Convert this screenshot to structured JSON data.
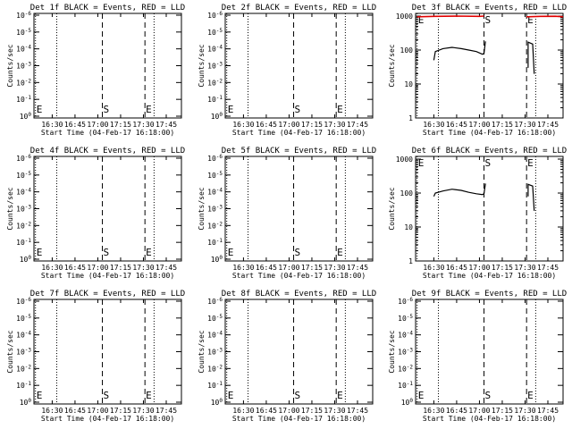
{
  "colors": {
    "events": "#000000",
    "lld": "#e00000",
    "background": "#ffffff"
  },
  "chart_data": [
    {
      "type": "line",
      "panel": 1,
      "scale": "low",
      "title": "Det 1f BLACK = Events, RED = LLD",
      "xlabel": "Start Time (04-Feb-17 16:18:00)",
      "ylabel": "Counts/sec",
      "xlim": [
        "16:18",
        "17:55"
      ],
      "x_ticks": [
        "16:30",
        "16:45",
        "17:00",
        "17:15",
        "17:30",
        "17:45"
      ],
      "ylog": true,
      "y_ticks": [
        "10^0",
        "10^-1",
        "10^-2",
        "10^-3",
        "10^-4",
        "10^-5",
        "10^-6"
      ],
      "dotted_lines": [
        "16:19",
        "16:33",
        "17:37"
      ],
      "dashed_lines": [
        "17:03",
        "17:31"
      ],
      "markers": [
        {
          "text": "E",
          "x": "16:19"
        },
        {
          "text": "S",
          "x": "17:03"
        },
        {
          "text": "E",
          "x": "17:31"
        }
      ],
      "series": []
    },
    {
      "type": "line",
      "panel": 2,
      "scale": "low",
      "title": "Det 2f BLACK = Events, RED = LLD",
      "xlabel": "Start Time (04-Feb-17 16:18:00)",
      "ylabel": "Counts/sec",
      "xlim": [
        "16:18",
        "17:55"
      ],
      "x_ticks": [
        "16:30",
        "16:45",
        "17:00",
        "17:15",
        "17:30",
        "17:45"
      ],
      "ylog": true,
      "y_ticks": [
        "10^0",
        "10^-1",
        "10^-2",
        "10^-3",
        "10^-4",
        "10^-5",
        "10^-6"
      ],
      "dotted_lines": [
        "16:19",
        "16:33",
        "17:37"
      ],
      "dashed_lines": [
        "17:03",
        "17:31"
      ],
      "markers": [
        {
          "text": "E",
          "x": "16:19"
        },
        {
          "text": "S",
          "x": "17:03"
        },
        {
          "text": "E",
          "x": "17:31"
        }
      ],
      "series": []
    },
    {
      "type": "line",
      "panel": 3,
      "scale": "high",
      "title": "Det 3f BLACK = Events, RED = LLD",
      "xlabel": "Start Time (04-Feb-17 16:18:00)",
      "ylabel": "Counts/sec",
      "xlim": [
        "16:18",
        "17:55"
      ],
      "x_ticks": [
        "16:30",
        "16:45",
        "17:00",
        "17:15",
        "17:30",
        "17:45"
      ],
      "ylog": true,
      "ylim": [
        1,
        1000
      ],
      "y_ticks": [
        "1",
        "10",
        "100",
        "1000"
      ],
      "dotted_lines": [
        "16:19",
        "16:33",
        "17:37"
      ],
      "dashed_lines": [
        "17:03",
        "17:31"
      ],
      "markers": [
        {
          "text": "E",
          "x": "16:19"
        },
        {
          "text": "S",
          "x": "17:03"
        },
        {
          "text": "E",
          "x": "17:31"
        }
      ],
      "series": [
        {
          "role": "lld",
          "color": "#e00000",
          "segments": [
            {
              "x": [
                "16:19",
                "16:30",
                "16:45",
                "17:00",
                "17:03"
              ],
              "y": [
                950,
                980,
                1000,
                980,
                1000
              ]
            },
            {
              "x": [
                "17:31",
                "17:40",
                "17:50",
                "17:55"
              ],
              "y": [
                950,
                980,
                990,
                950
              ]
            }
          ]
        },
        {
          "role": "events",
          "color": "#000000",
          "segments": [
            {
              "x": [
                "16:30",
                "16:31",
                "16:36",
                "16:42",
                "16:48",
                "16:53",
                "16:58",
                "17:02",
                "17:03",
                "17:04"
              ],
              "y": [
                50,
                90,
                110,
                120,
                110,
                100,
                90,
                75,
                80,
                180
              ]
            },
            {
              "x": [
                "17:32",
                "17:32",
                "17:35",
                "17:36"
              ],
              "y": [
                30,
                170,
                150,
                20
              ]
            }
          ]
        }
      ]
    },
    {
      "type": "line",
      "panel": 4,
      "scale": "low",
      "title": "Det 4f BLACK = Events, RED = LLD",
      "xlabel": "Start Time (04-Feb-17 16:18:00)",
      "ylabel": "Counts/sec",
      "xlim": [
        "16:18",
        "17:55"
      ],
      "x_ticks": [
        "16:30",
        "16:45",
        "17:00",
        "17:15",
        "17:30",
        "17:45"
      ],
      "ylog": true,
      "y_ticks": [
        "10^0",
        "10^-1",
        "10^-2",
        "10^-3",
        "10^-4",
        "10^-5",
        "10^-6"
      ],
      "dotted_lines": [
        "16:19",
        "16:33",
        "17:37"
      ],
      "dashed_lines": [
        "17:03",
        "17:31"
      ],
      "markers": [
        {
          "text": "E",
          "x": "16:19"
        },
        {
          "text": "S",
          "x": "17:03"
        },
        {
          "text": "E",
          "x": "17:31"
        }
      ],
      "series": []
    },
    {
      "type": "line",
      "panel": 5,
      "scale": "low",
      "title": "Det 5f BLACK = Events, RED = LLD",
      "xlabel": "Start Time (04-Feb-17 16:18:00)",
      "ylabel": "Counts/sec",
      "xlim": [
        "16:18",
        "17:55"
      ],
      "x_ticks": [
        "16:30",
        "16:45",
        "17:00",
        "17:15",
        "17:30",
        "17:45"
      ],
      "ylog": true,
      "y_ticks": [
        "10^0",
        "10^-1",
        "10^-2",
        "10^-3",
        "10^-4",
        "10^-5",
        "10^-6"
      ],
      "dotted_lines": [
        "16:19",
        "16:33",
        "17:37"
      ],
      "dashed_lines": [
        "17:03",
        "17:31"
      ],
      "markers": [
        {
          "text": "E",
          "x": "16:19"
        },
        {
          "text": "S",
          "x": "17:03"
        },
        {
          "text": "E",
          "x": "17:31"
        }
      ],
      "series": []
    },
    {
      "type": "line",
      "panel": 6,
      "scale": "high",
      "title": "Det 6f BLACK = Events, RED = LLD",
      "xlabel": "Start Time (04-Feb-17 16:18:00)",
      "ylabel": "Counts/sec",
      "xlim": [
        "16:18",
        "17:55"
      ],
      "x_ticks": [
        "16:30",
        "16:45",
        "17:00",
        "17:15",
        "17:30",
        "17:45"
      ],
      "ylog": true,
      "ylim": [
        1,
        1000
      ],
      "y_ticks": [
        "1",
        "10",
        "100",
        "1000"
      ],
      "dotted_lines": [
        "16:19",
        "16:33",
        "17:37"
      ],
      "dashed_lines": [
        "17:03",
        "17:31"
      ],
      "markers": [
        {
          "text": "E",
          "x": "16:19"
        },
        {
          "text": "S",
          "x": "17:03"
        },
        {
          "text": "E",
          "x": "17:31"
        }
      ],
      "series": [
        {
          "role": "events",
          "color": "#000000",
          "segments": [
            {
              "x": [
                "16:30",
                "16:31",
                "16:36",
                "16:42",
                "16:48",
                "16:53",
                "16:58",
                "17:02",
                "17:03",
                "17:04"
              ],
              "y": [
                80,
                100,
                115,
                130,
                120,
                105,
                95,
                90,
                95,
                190
              ]
            },
            {
              "x": [
                "17:32",
                "17:32",
                "17:35",
                "17:36"
              ],
              "y": [
                80,
                180,
                160,
                30
              ]
            }
          ]
        }
      ]
    },
    {
      "type": "line",
      "panel": 7,
      "scale": "low",
      "title": "Det 7f BLACK = Events, RED = LLD",
      "xlabel": "Start Time (04-Feb-17 16:18:00)",
      "ylabel": "Counts/sec",
      "xlim": [
        "16:18",
        "17:55"
      ],
      "x_ticks": [
        "16:30",
        "16:45",
        "17:00",
        "17:15",
        "17:30",
        "17:45"
      ],
      "ylog": true,
      "y_ticks": [
        "10^0",
        "10^-1",
        "10^-2",
        "10^-3",
        "10^-4",
        "10^-5",
        "10^-6"
      ],
      "dotted_lines": [
        "16:19",
        "16:33",
        "17:37"
      ],
      "dashed_lines": [
        "17:03",
        "17:31"
      ],
      "markers": [
        {
          "text": "E",
          "x": "16:19"
        },
        {
          "text": "S",
          "x": "17:03"
        },
        {
          "text": "E",
          "x": "17:31"
        }
      ],
      "series": []
    },
    {
      "type": "line",
      "panel": 8,
      "scale": "low",
      "title": "Det 8f BLACK = Events, RED = LLD",
      "xlabel": "Start Time (04-Feb-17 16:18:00)",
      "ylabel": "Counts/sec",
      "xlim": [
        "16:18",
        "17:55"
      ],
      "x_ticks": [
        "16:30",
        "16:45",
        "17:00",
        "17:15",
        "17:30",
        "17:45"
      ],
      "ylog": true,
      "y_ticks": [
        "10^0",
        "10^-1",
        "10^-2",
        "10^-3",
        "10^-4",
        "10^-5",
        "10^-6"
      ],
      "dotted_lines": [
        "16:19",
        "16:33",
        "17:37"
      ],
      "dashed_lines": [
        "17:03",
        "17:31"
      ],
      "markers": [
        {
          "text": "E",
          "x": "16:19"
        },
        {
          "text": "S",
          "x": "17:03"
        },
        {
          "text": "E",
          "x": "17:31"
        }
      ],
      "series": []
    },
    {
      "type": "line",
      "panel": 9,
      "scale": "low",
      "title": "Det 9f BLACK = Events, RED = LLD",
      "xlabel": "Start Time (04-Feb-17 16:18:00)",
      "ylabel": "Counts/sec",
      "xlim": [
        "16:18",
        "17:55"
      ],
      "x_ticks": [
        "16:30",
        "16:45",
        "17:00",
        "17:15",
        "17:30",
        "17:45"
      ],
      "ylog": true,
      "y_ticks": [
        "10^0",
        "10^-1",
        "10^-2",
        "10^-3",
        "10^-4",
        "10^-5",
        "10^-6"
      ],
      "dotted_lines": [
        "16:19",
        "16:33",
        "17:37"
      ],
      "dashed_lines": [
        "17:03",
        "17:31"
      ],
      "markers": [
        {
          "text": "E",
          "x": "16:19"
        },
        {
          "text": "S",
          "x": "17:03"
        },
        {
          "text": "E",
          "x": "17:31"
        }
      ],
      "series": []
    }
  ]
}
